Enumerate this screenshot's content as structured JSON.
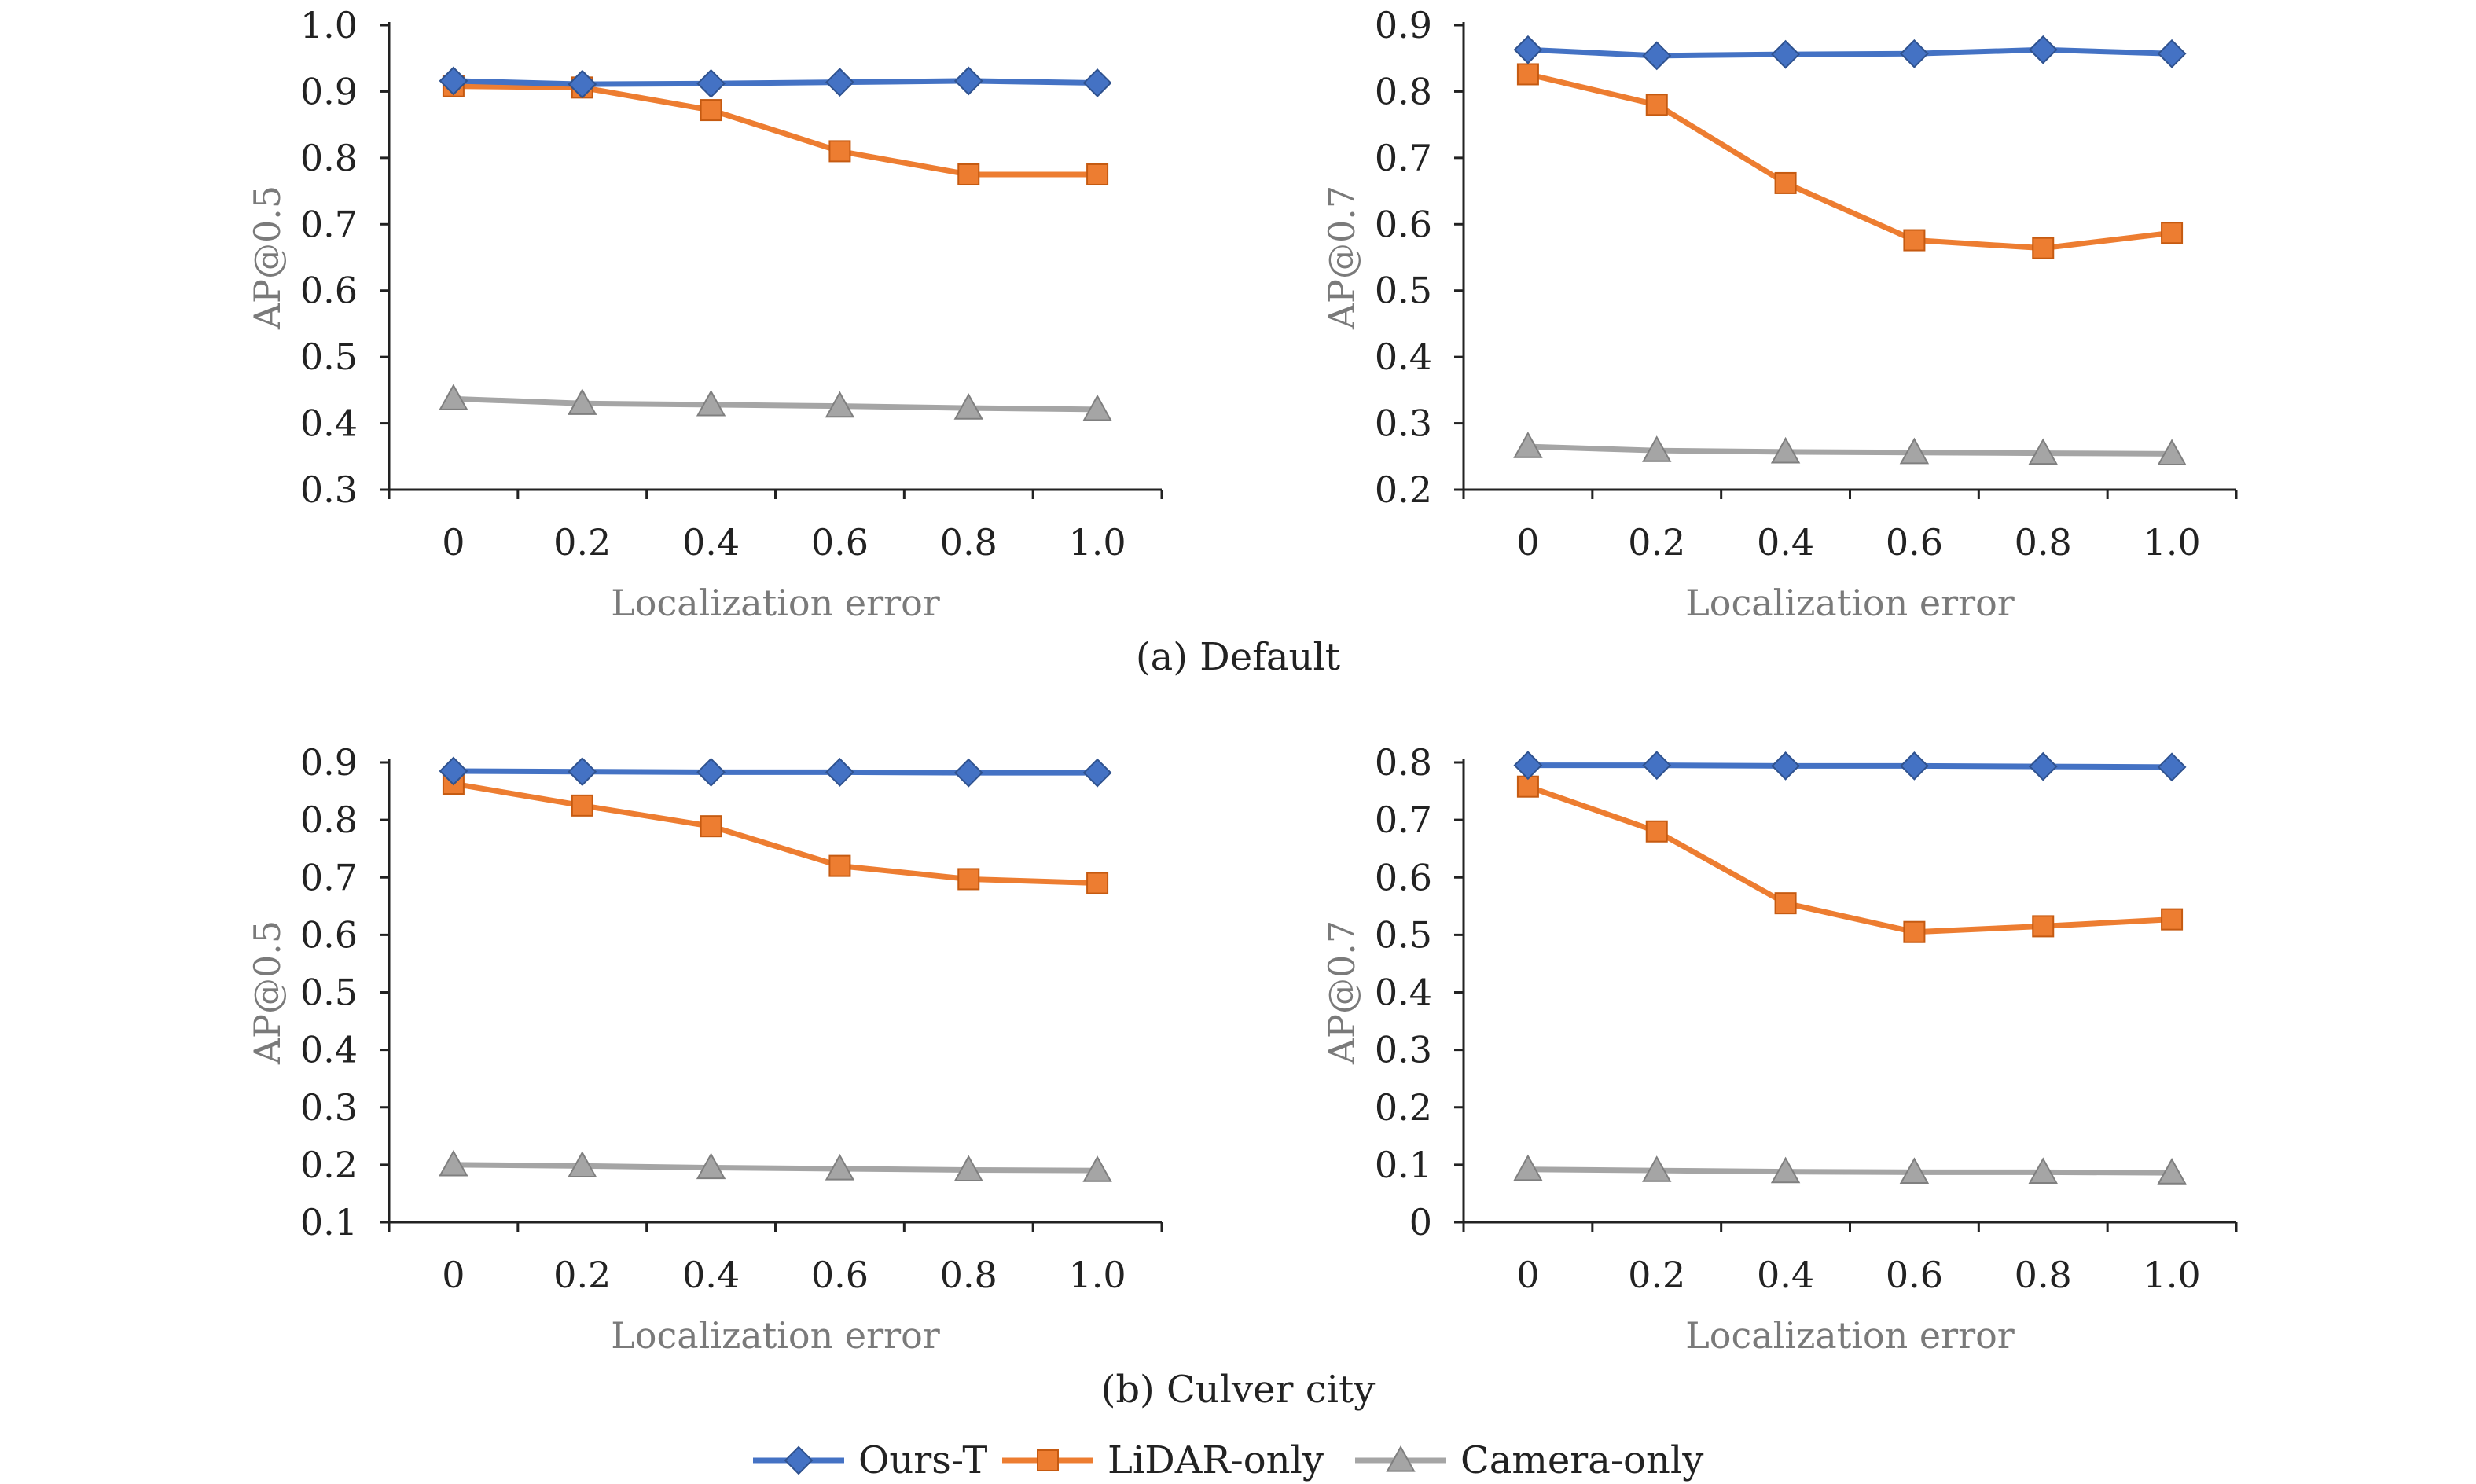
{
  "captions": {
    "a": "(a) Default",
    "b": "(b) Culver city"
  },
  "chart_data": [
    {
      "type": "line",
      "xlabel": "Localization error",
      "ylabel": "AP@0.5",
      "x": [
        0,
        0.2,
        0.4,
        0.6,
        0.8,
        1.0
      ],
      "x_tick_labels": [
        "0",
        "0.2",
        "0.4",
        "0.6",
        "0.8",
        "1.0"
      ],
      "ylim": [
        0.3,
        1.0
      ],
      "y_ticks": [
        0.3,
        0.4,
        0.5,
        0.6,
        0.7,
        0.8,
        0.9,
        1.0
      ],
      "y_tick_labels": [
        "0.3",
        "0.4",
        "0.5",
        "0.6",
        "0.7",
        "0.8",
        "0.9",
        "1.0"
      ],
      "grid": false,
      "series": [
        {
          "name": "Ours-T",
          "values": [
            0.916,
            0.911,
            0.912,
            0.914,
            0.916,
            0.913
          ]
        },
        {
          "name": "LiDAR-only",
          "values": [
            0.908,
            0.906,
            0.872,
            0.81,
            0.775,
            0.775
          ]
        },
        {
          "name": "Camera-only",
          "values": [
            0.437,
            0.43,
            0.428,
            0.426,
            0.423,
            0.421
          ]
        }
      ]
    },
    {
      "type": "line",
      "xlabel": "Localization error",
      "ylabel": "AP@0.7",
      "x": [
        0,
        0.2,
        0.4,
        0.6,
        0.8,
        1.0
      ],
      "x_tick_labels": [
        "0",
        "0.2",
        "0.4",
        "0.6",
        "0.8",
        "1.0"
      ],
      "ylim": [
        0.2,
        0.9
      ],
      "y_ticks": [
        0.2,
        0.3,
        0.4,
        0.5,
        0.6,
        0.7,
        0.8,
        0.9
      ],
      "y_tick_labels": [
        "0.2",
        "0.3",
        "0.4",
        "0.5",
        "0.6",
        "0.7",
        "0.8",
        "0.9"
      ],
      "grid": false,
      "series": [
        {
          "name": "Ours-T",
          "values": [
            0.863,
            0.854,
            0.856,
            0.857,
            0.863,
            0.857
          ]
        },
        {
          "name": "LiDAR-only",
          "values": [
            0.826,
            0.78,
            0.662,
            0.576,
            0.564,
            0.587
          ]
        },
        {
          "name": "Camera-only",
          "values": [
            0.265,
            0.259,
            0.257,
            0.256,
            0.255,
            0.254
          ]
        }
      ]
    },
    {
      "type": "line",
      "xlabel": "Localization error",
      "ylabel": "AP@0.5",
      "x": [
        0,
        0.2,
        0.4,
        0.6,
        0.8,
        1.0
      ],
      "x_tick_labels": [
        "0",
        "0.2",
        "0.4",
        "0.6",
        "0.8",
        "1.0"
      ],
      "ylim": [
        0.1,
        0.9
      ],
      "y_ticks": [
        0.1,
        0.2,
        0.3,
        0.4,
        0.5,
        0.6,
        0.7,
        0.8,
        0.9
      ],
      "y_tick_labels": [
        "0.1",
        "0.2",
        "0.3",
        "0.4",
        "0.5",
        "0.6",
        "0.7",
        "0.8",
        "0.9"
      ],
      "grid": false,
      "series": [
        {
          "name": "Ours-T",
          "values": [
            0.885,
            0.884,
            0.883,
            0.883,
            0.882,
            0.882
          ]
        },
        {
          "name": "LiDAR-only",
          "values": [
            0.863,
            0.825,
            0.789,
            0.72,
            0.697,
            0.69
          ]
        },
        {
          "name": "Camera-only",
          "values": [
            0.2,
            0.198,
            0.195,
            0.193,
            0.191,
            0.19
          ]
        }
      ]
    },
    {
      "type": "line",
      "xlabel": "Localization error",
      "ylabel": "AP@0.7",
      "x": [
        0,
        0.2,
        0.4,
        0.6,
        0.8,
        1.0
      ],
      "x_tick_labels": [
        "0",
        "0.2",
        "0.4",
        "0.6",
        "0.8",
        "1.0"
      ],
      "ylim": [
        0,
        0.8
      ],
      "y_ticks": [
        0,
        0.1,
        0.2,
        0.3,
        0.4,
        0.5,
        0.6,
        0.7,
        0.8
      ],
      "y_tick_labels": [
        "0",
        "0.1",
        "0.2",
        "0.3",
        "0.4",
        "0.5",
        "0.6",
        "0.7",
        "0.8"
      ],
      "grid": false,
      "series": [
        {
          "name": "Ours-T",
          "values": [
            0.795,
            0.795,
            0.794,
            0.794,
            0.793,
            0.792
          ]
        },
        {
          "name": "LiDAR-only",
          "values": [
            0.758,
            0.68,
            0.555,
            0.505,
            0.515,
            0.527
          ]
        },
        {
          "name": "Camera-only",
          "values": [
            0.092,
            0.09,
            0.088,
            0.087,
            0.087,
            0.086
          ]
        }
      ]
    }
  ],
  "legend": {
    "position": "bottom-center",
    "items": [
      {
        "label": "Ours-T",
        "marker": "diamond",
        "color": "#4472c4"
      },
      {
        "label": "LiDAR-only",
        "marker": "square",
        "color": "#ed7d31"
      },
      {
        "label": "Camera-only",
        "marker": "triangle",
        "color": "#a5a5a5"
      }
    ]
  },
  "colors": {
    "Ours-T": "#4472c4",
    "LiDAR-only": "#ed7d31",
    "Camera-only": "#a5a5a5",
    "axis": "#222222",
    "axis_title": "#7a7a7a"
  }
}
